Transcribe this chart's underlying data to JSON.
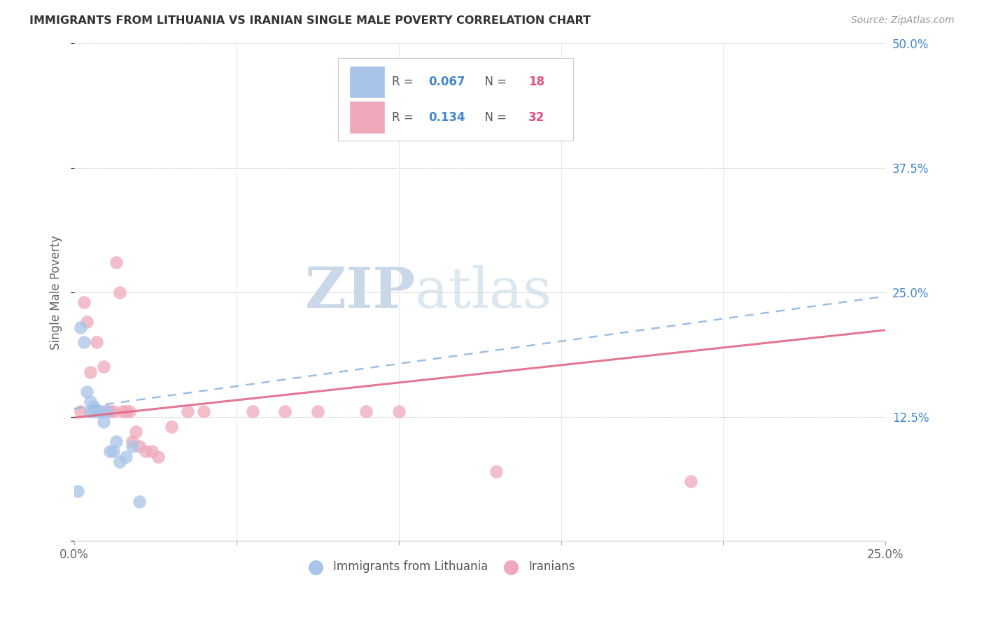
{
  "title": "IMMIGRANTS FROM LITHUANIA VS IRANIAN SINGLE MALE POVERTY CORRELATION CHART",
  "source": "Source: ZipAtlas.com",
  "ylabel": "Single Male Poverty",
  "xlim": [
    0.0,
    0.25
  ],
  "ylim": [
    0.0,
    0.5
  ],
  "ytick_positions": [
    0.0,
    0.125,
    0.25,
    0.375,
    0.5
  ],
  "ytick_labels": [
    "",
    "12.5%",
    "25.0%",
    "37.5%",
    "50.0%"
  ],
  "background_color": "#ffffff",
  "watermark_zip": "ZIP",
  "watermark_atlas": "atlas",
  "watermark_color_zip": "#c8d8e8",
  "watermark_color_atlas": "#c8dce8",
  "color_blue": "#a8c4e8",
  "color_pink": "#f0a8bc",
  "line_blue_color": "#90b8e0",
  "line_pink_color": "#e06888",
  "r_color": "#4488cc",
  "n_color": "#e05080",
  "legend_r1_val": "0.067",
  "legend_n1_val": "18",
  "legend_r2_val": "0.134",
  "legend_n2_val": "32",
  "lithuania_x": [
    0.001,
    0.002,
    0.003,
    0.004,
    0.005,
    0.005,
    0.006,
    0.007,
    0.008,
    0.009,
    0.01,
    0.011,
    0.012,
    0.013,
    0.014,
    0.016,
    0.018,
    0.02
  ],
  "lithuania_y": [
    0.05,
    0.215,
    0.2,
    0.15,
    0.14,
    0.13,
    0.135,
    0.13,
    0.13,
    0.12,
    0.13,
    0.09,
    0.09,
    0.1,
    0.08,
    0.085,
    0.095,
    0.04
  ],
  "iran_x": [
    0.002,
    0.003,
    0.004,
    0.005,
    0.006,
    0.007,
    0.008,
    0.009,
    0.01,
    0.011,
    0.012,
    0.013,
    0.014,
    0.015,
    0.016,
    0.017,
    0.018,
    0.019,
    0.02,
    0.022,
    0.024,
    0.026,
    0.03,
    0.035,
    0.04,
    0.055,
    0.065,
    0.075,
    0.09,
    0.1,
    0.13,
    0.19
  ],
  "iran_y": [
    0.13,
    0.24,
    0.22,
    0.17,
    0.13,
    0.2,
    0.13,
    0.175,
    0.13,
    0.13,
    0.13,
    0.28,
    0.25,
    0.13,
    0.13,
    0.13,
    0.1,
    0.11,
    0.095,
    0.09,
    0.09,
    0.085,
    0.115,
    0.13,
    0.13,
    0.13,
    0.13,
    0.13,
    0.13,
    0.13,
    0.07,
    0.06
  ]
}
